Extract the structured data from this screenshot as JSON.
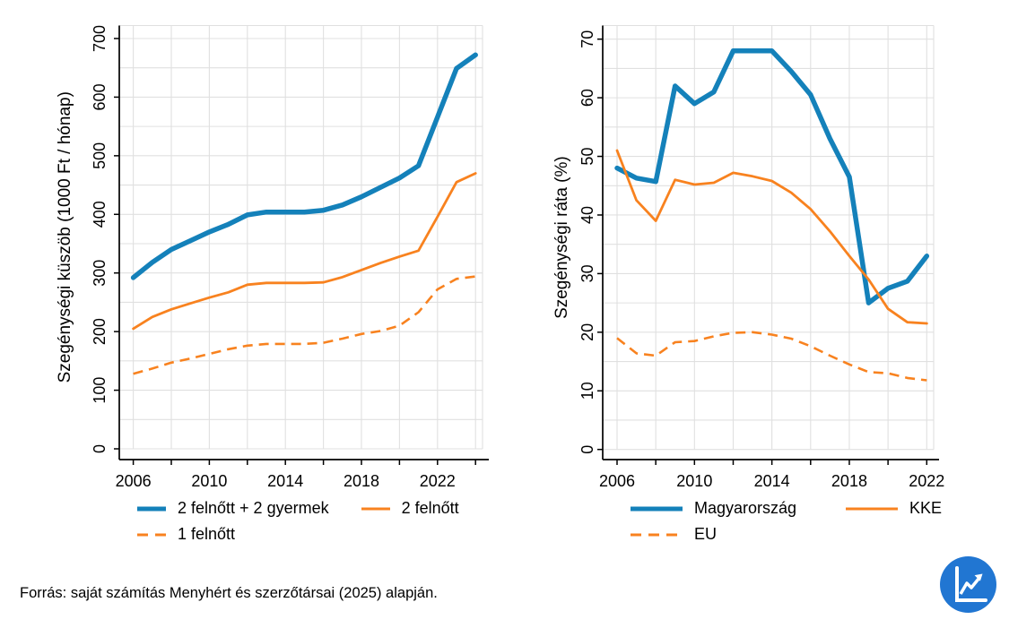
{
  "source_note": "Forrás: saját számítás Menyhért és szerzőtársai (2025) alapján.",
  "logo": {
    "name": "line-chart-logo",
    "background_color": "#2176d2",
    "glyph_color": "#ffffff"
  },
  "style": {
    "grid_color": "#e0e0e0",
    "axis_color": "#000000",
    "text_color": "#000000",
    "background": "#ffffff",
    "blue": "#1481ba",
    "orange": "#f8821f"
  },
  "chart_data": [
    {
      "type": "line",
      "title": "",
      "xlabel": "",
      "ylabel": "Szegénységi küszöb (1000 Ft / hónap)",
      "grid": true,
      "legend_position": "bottom",
      "ylim": [
        0,
        700
      ],
      "y_tick_step": 100,
      "y_grid_step": 50,
      "x_grid_step_years": 2,
      "x": [
        2006,
        2007,
        2008,
        2009,
        2010,
        2011,
        2012,
        2013,
        2014,
        2015,
        2016,
        2017,
        2018,
        2019,
        2020,
        2021,
        2022,
        2023,
        2024
      ],
      "x_tick_labels": [
        2006,
        2010,
        2014,
        2018,
        2022
      ],
      "series": [
        {
          "name": "2 felnőtt + 2 gyermek",
          "color": "#1481ba",
          "style": "solid",
          "width": 5.5,
          "values": [
            292,
            318,
            340,
            355,
            370,
            383,
            399,
            404,
            404,
            404,
            407,
            416,
            430,
            446,
            462,
            483,
            566,
            649,
            672
          ]
        },
        {
          "name": "2 felnőtt",
          "color": "#f8821f",
          "style": "solid",
          "width": 2.8,
          "values": [
            205,
            225,
            238,
            248,
            258,
            267,
            280,
            283,
            283,
            283,
            284,
            293,
            305,
            317,
            328,
            338,
            396,
            455,
            470
          ]
        },
        {
          "name": "1 felnőtt",
          "color": "#f8821f",
          "style": "dashed",
          "width": 2.6,
          "values": [
            128,
            137,
            147,
            154,
            162,
            170,
            176,
            179,
            179,
            179,
            181,
            188,
            196,
            201,
            210,
            233,
            272,
            290,
            294
          ]
        }
      ],
      "legend_rows": [
        [
          "2 felnőtt + 2 gyermek",
          "2 felnőtt"
        ],
        [
          "1 felnőtt"
        ]
      ]
    },
    {
      "type": "line",
      "title": "",
      "xlabel": "",
      "ylabel": "Szegénységi ráta (%)",
      "grid": true,
      "legend_position": "bottom",
      "ylim": [
        0,
        70
      ],
      "y_tick_step": 10,
      "y_grid_step": 5,
      "x_grid_step_years": 2,
      "x": [
        2006,
        2007,
        2008,
        2009,
        2010,
        2011,
        2012,
        2013,
        2014,
        2015,
        2016,
        2017,
        2018,
        2019,
        2020,
        2021,
        2022
      ],
      "x_tick_labels": [
        2006,
        2010,
        2014,
        2018,
        2022
      ],
      "series": [
        {
          "name": "Magyarország",
          "color": "#1481ba",
          "style": "solid",
          "width": 5.5,
          "values": [
            48,
            46.3,
            45.7,
            62,
            59,
            61,
            68,
            68,
            68,
            64.5,
            60.5,
            53,
            46.5,
            25,
            27.5,
            28.7,
            33
          ]
        },
        {
          "name": "KKE",
          "color": "#f8821f",
          "style": "solid",
          "width": 2.8,
          "values": [
            51,
            42.5,
            39,
            46,
            45.2,
            45.5,
            47.2,
            46.6,
            45.8,
            43.8,
            41,
            37.2,
            33,
            29,
            24,
            21.7,
            21.5
          ]
        },
        {
          "name": "EU",
          "color": "#f8821f",
          "style": "dashed",
          "width": 2.6,
          "values": [
            19,
            16.4,
            16,
            18.3,
            18.5,
            19.3,
            19.9,
            20,
            19.6,
            18.9,
            17.6,
            16,
            14.5,
            13.2,
            13,
            12.2,
            11.8
          ]
        }
      ],
      "legend_rows": [
        [
          "Magyarország",
          "KKE"
        ],
        [
          "EU"
        ]
      ]
    }
  ]
}
